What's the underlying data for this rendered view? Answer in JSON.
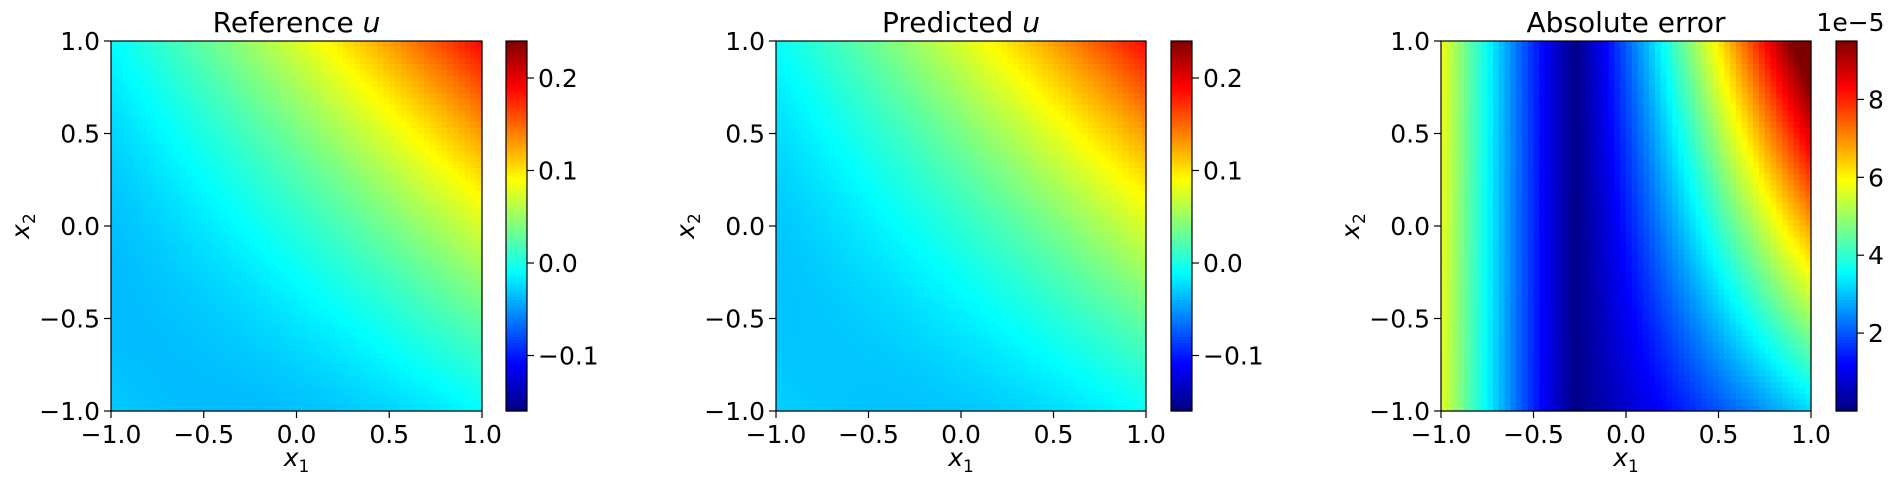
{
  "chart_data": [
    {
      "type": "heatmap",
      "title": "Reference u",
      "xlabel": "x1",
      "ylabel": "x2",
      "xlim": [
        -1.0,
        1.0
      ],
      "ylim": [
        -1.0,
        1.0
      ],
      "x_ticks": [
        "−1.0",
        "−0.5",
        "0.0",
        "0.5",
        "1.0"
      ],
      "y_ticks": [
        "−1.0",
        "−0.5",
        "0.0",
        "0.5",
        "1.0"
      ],
      "colormap": "jet",
      "value_range": [
        -0.16,
        0.24
      ],
      "colorbar_ticks": [
        "−0.1",
        "0.0",
        "0.1",
        "0.2"
      ]
    },
    {
      "type": "heatmap",
      "title": "Predicted u",
      "xlabel": "x1",
      "ylabel": "x2",
      "xlim": [
        -1.0,
        1.0
      ],
      "ylim": [
        -1.0,
        1.0
      ],
      "x_ticks": [
        "−1.0",
        "−0.5",
        "0.0",
        "0.5",
        "1.0"
      ],
      "y_ticks": [
        "−1.0",
        "−0.5",
        "0.0",
        "0.5",
        "1.0"
      ],
      "colormap": "jet",
      "value_range": [
        -0.16,
        0.24
      ],
      "colorbar_ticks": [
        "−0.1",
        "0.0",
        "0.1",
        "0.2"
      ]
    },
    {
      "type": "heatmap",
      "title": "Absolute error",
      "xlabel": "x1",
      "ylabel": "x2",
      "xlim": [
        -1.0,
        1.0
      ],
      "ylim": [
        -1.0,
        1.0
      ],
      "x_ticks": [
        "−1.0",
        "−0.5",
        "0.0",
        "0.5",
        "1.0"
      ],
      "y_ticks": [
        "−1.0",
        "−0.5",
        "0.0",
        "0.5",
        "1.0"
      ],
      "colormap": "jet",
      "value_range": [
        0.0,
        9.5
      ],
      "colorbar_ticks": [
        "2",
        "4",
        "6",
        "8"
      ],
      "colorbar_multiplier": "1e−5"
    }
  ]
}
